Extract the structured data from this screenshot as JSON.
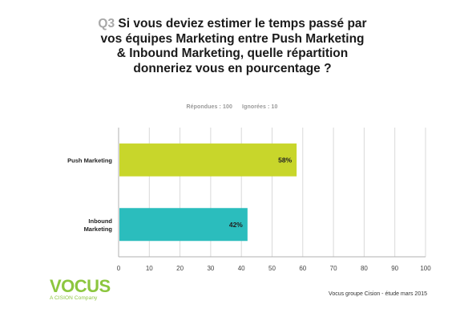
{
  "question": {
    "number": "Q3",
    "text": "Si vous deviez estimer le temps passé par vos équipes Marketing entre Push Marketing & Inbound Marketing, quelle répartition donneriez vous en pourcentage ?"
  },
  "stats": {
    "answered": "Répondues : 100",
    "ignored": "Ignorées : 10"
  },
  "footer": {
    "source": "Vocus groupe Cision - étude mars 2015",
    "logo_word": "VOCUS",
    "logo_sub": "A CISION Company"
  },
  "colors": {
    "push": "#c8d62b",
    "inbound": "#2bbdbd",
    "grid": "#d9d9d9",
    "axis": "#b0b0b0"
  },
  "chart_data": {
    "type": "bar",
    "orientation": "horizontal",
    "categories": [
      "Push Marketing",
      "Inbound Marketing"
    ],
    "values": [
      58,
      42
    ],
    "value_labels": [
      "58%",
      "42%"
    ],
    "xlim": [
      0,
      100
    ],
    "xticks": [
      0,
      10,
      20,
      30,
      40,
      50,
      60,
      70,
      80,
      90,
      100
    ],
    "grid": true
  }
}
